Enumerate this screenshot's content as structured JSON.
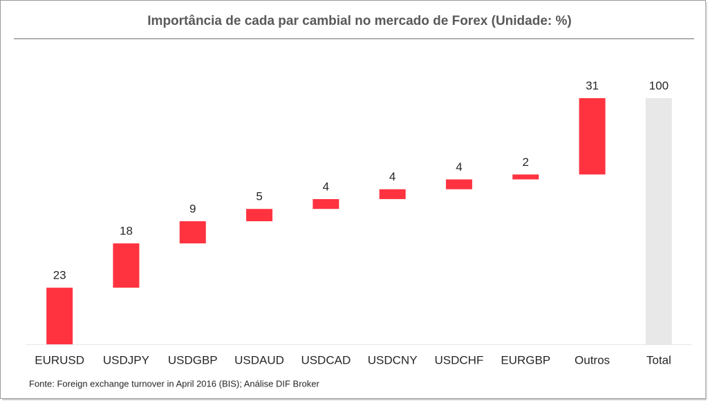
{
  "chart_data": {
    "type": "waterfall",
    "title": "Importância de cada par cambial no mercado de Forex (Unidade: %)",
    "categories": [
      "EURUSD",
      "USDJPY",
      "USDGBP",
      "USDAUD",
      "USDCAD",
      "USDCNY",
      "USDCHF",
      "EURGBP",
      "Outros"
    ],
    "values": [
      23,
      18,
      9,
      5,
      4,
      4,
      4,
      2,
      31
    ],
    "color": "#ff3340",
    "total_label": "Total",
    "total_value": 100,
    "total_color": "#e8e8e8",
    "source": "Fonte: Foreign exchange turnover in April 2016 (BIS); Análise DIF Broker"
  }
}
